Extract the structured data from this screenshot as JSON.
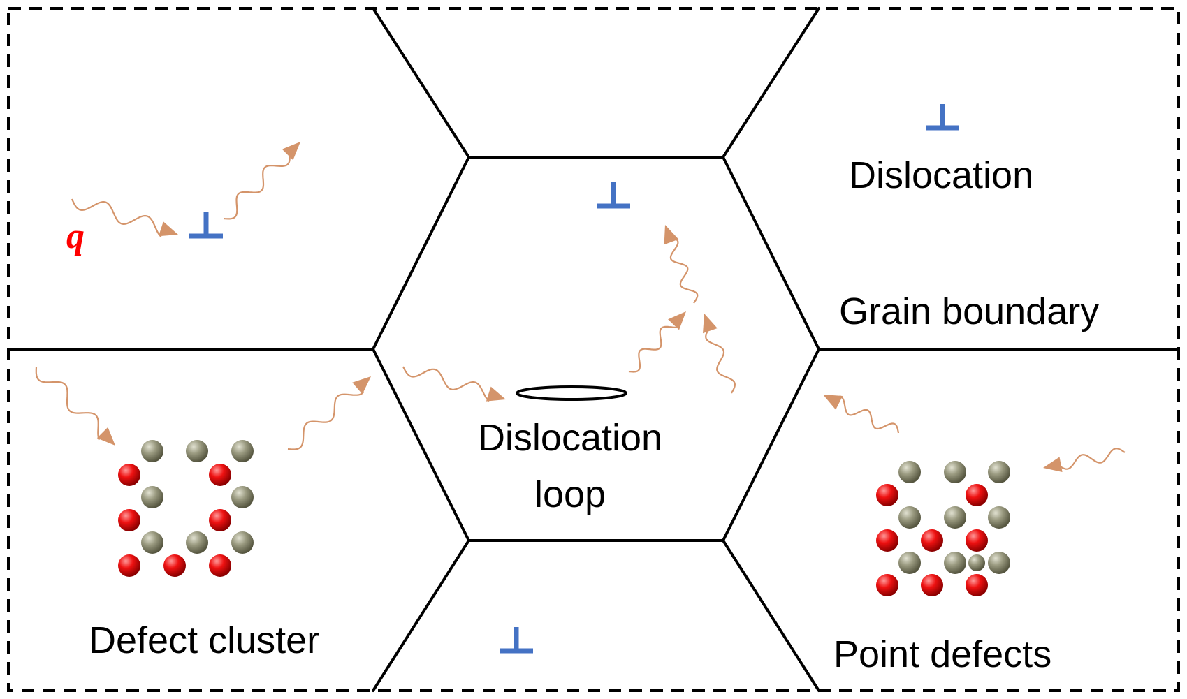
{
  "labels": {
    "q_symbol": "q",
    "dislocation": "Dislocation",
    "grain_boundary": "Grain boundary",
    "dislocation_loop_line1": "Dislocation",
    "dislocation_loop_line2": "loop",
    "defect_cluster": "Defect cluster",
    "point_defects": "Point defects"
  },
  "dislocation_symbol": "⊥",
  "colors": {
    "grain_boundary": "#000000",
    "dislocation_symbol": "#4472c4",
    "phonon_wave": "#d4946a",
    "q_label": "#ff0000",
    "cluster_ring": "#ed7d31",
    "interstitial_atom": "#ee1111",
    "host_atom": "#9a9a80"
  },
  "icons": [
    "dislocation-symbol-icon",
    "phonon-wave-arrow-icon",
    "red-atom-icon",
    "grey-atom-icon"
  ]
}
